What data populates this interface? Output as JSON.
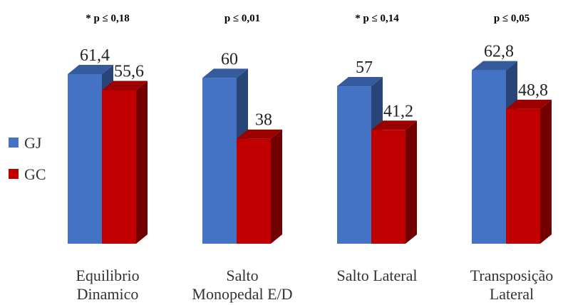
{
  "chart_data": {
    "type": "bar",
    "categories": [
      [
        "Equilibrio",
        "Dinamico"
      ],
      [
        "Salto",
        "Monopedal E/D"
      ],
      [
        "Salto Lateral"
      ],
      [
        "Transposição",
        "Lateral"
      ]
    ],
    "category_annotations": [
      "* p  ≤ 0,18",
      "p ≤ 0,01",
      "* p ≤ 0,14",
      "p ≤ 0,05"
    ],
    "series": [
      {
        "name": "GJ",
        "color": "#4472C4",
        "values": [
          61.4,
          60,
          57,
          62.8
        ],
        "labels": [
          "61,4",
          "60",
          "57",
          "62,8"
        ]
      },
      {
        "name": "GC",
        "color": "#C00000",
        "values": [
          55.6,
          38,
          41.2,
          48.8
        ],
        "labels": [
          "55,6",
          "38",
          "41,2",
          "48,8"
        ]
      }
    ],
    "legend": "left",
    "grid": false,
    "style": "3d-bar",
    "ylim": [
      0,
      70
    ]
  }
}
